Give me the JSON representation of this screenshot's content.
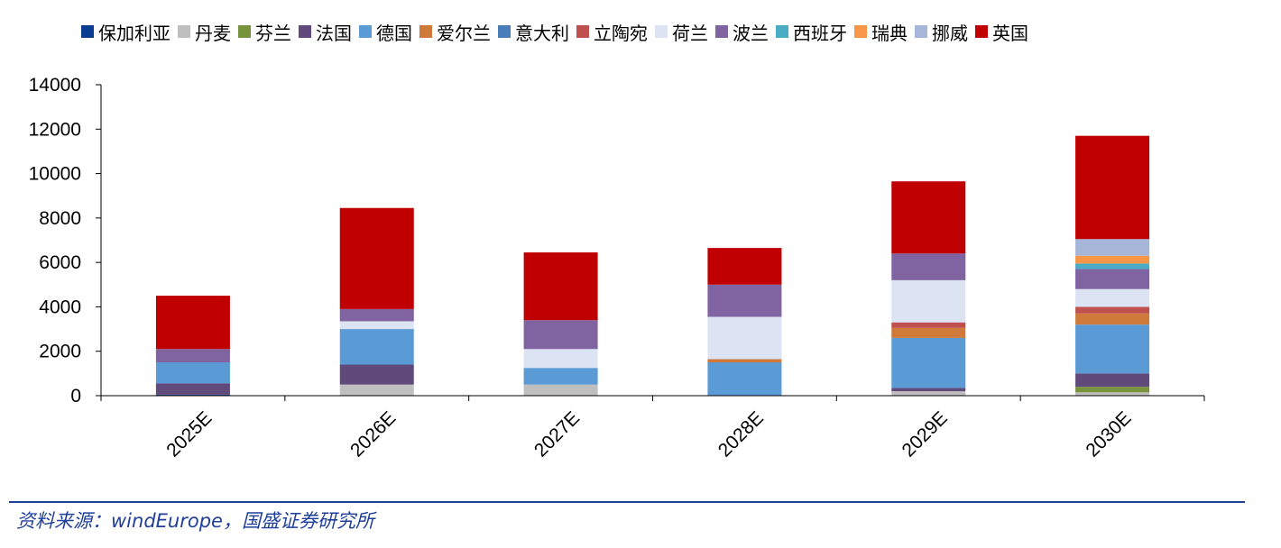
{
  "source_text": "资料来源：windEurope，国盛证券研究所",
  "chart_data": {
    "type": "bar",
    "stacked": true,
    "title": "",
    "xlabel": "",
    "ylabel": "",
    "ylim": [
      0,
      14000
    ],
    "yticks": [
      "0",
      "2000",
      "4000",
      "6000",
      "8000",
      "10000",
      "12000",
      "14000"
    ],
    "categories": [
      "2025E",
      "2026E",
      "2027E",
      "2028E",
      "2029E",
      "2030E"
    ],
    "legend_position": "top",
    "grid": false,
    "series": [
      {
        "name": "保加利亚",
        "color": "#0a3d91",
        "values": [
          50,
          0,
          0,
          0,
          0,
          0
        ]
      },
      {
        "name": "丹麦",
        "color": "#bfbfbf",
        "values": [
          0,
          500,
          500,
          0,
          200,
          150
        ]
      },
      {
        "name": "芬兰",
        "color": "#77933c",
        "values": [
          0,
          0,
          0,
          0,
          0,
          250
        ]
      },
      {
        "name": "法国",
        "color": "#604a7b",
        "values": [
          500,
          900,
          0,
          0,
          150,
          600
        ]
      },
      {
        "name": "德国",
        "color": "#5b9bd5",
        "values": [
          950,
          1600,
          750,
          1500,
          2250,
          2200
        ]
      },
      {
        "name": "爱尔兰",
        "color": "#cf7a3a",
        "values": [
          0,
          0,
          0,
          150,
          450,
          500
        ]
      },
      {
        "name": "意大利",
        "color": "#4a7ebb",
        "values": [
          0,
          0,
          0,
          0,
          0,
          0
        ]
      },
      {
        "name": "立陶宛",
        "color": "#c0504d",
        "values": [
          0,
          0,
          0,
          0,
          250,
          300
        ]
      },
      {
        "name": "荷兰",
        "color": "#dce3f3",
        "values": [
          0,
          350,
          850,
          1900,
          1900,
          800
        ]
      },
      {
        "name": "波兰",
        "color": "#8064a2",
        "values": [
          600,
          550,
          1300,
          1450,
          1200,
          900
        ]
      },
      {
        "name": "西班牙",
        "color": "#4bacc6",
        "values": [
          0,
          0,
          0,
          0,
          0,
          250
        ]
      },
      {
        "name": "瑞典",
        "color": "#f79646",
        "values": [
          0,
          0,
          0,
          0,
          0,
          350
        ]
      },
      {
        "name": "挪威",
        "color": "#a6b6d9",
        "values": [
          0,
          0,
          0,
          0,
          0,
          750
        ]
      },
      {
        "name": "英国",
        "color": "#c00000",
        "values": [
          2400,
          4550,
          3050,
          1650,
          3250,
          4650
        ]
      }
    ]
  }
}
